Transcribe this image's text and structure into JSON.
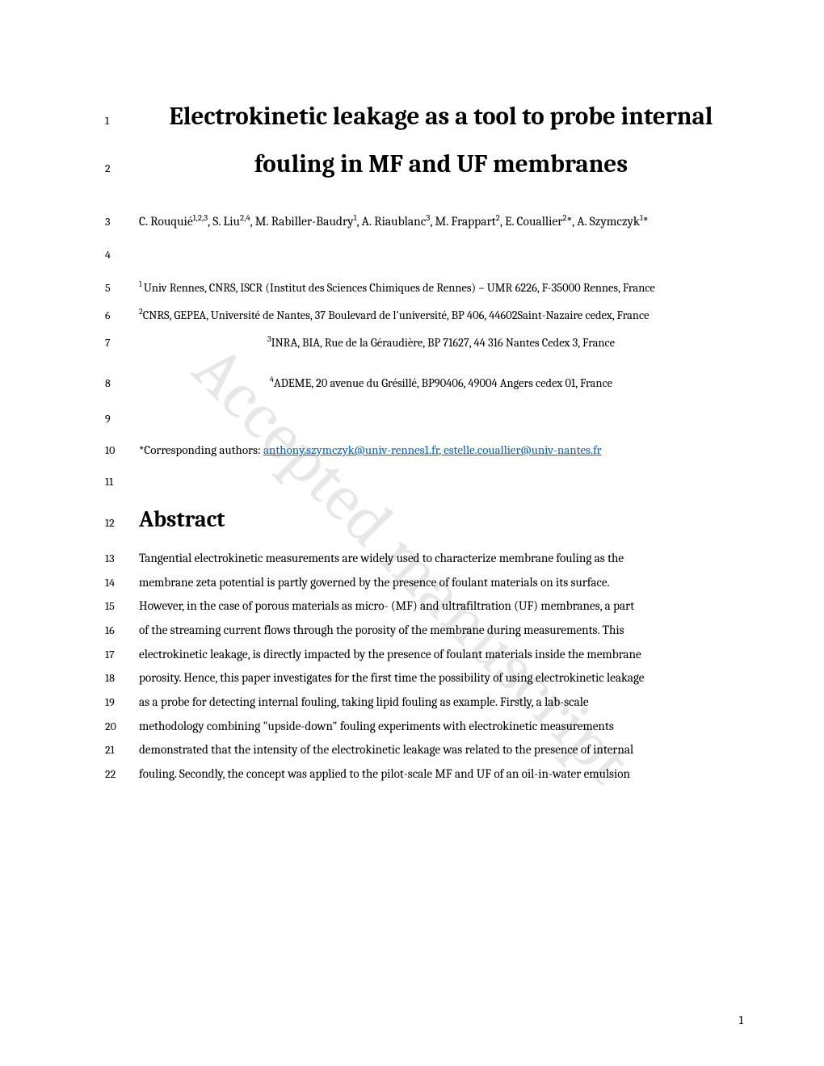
{
  "watermark": "Accepted manuscript",
  "title": {
    "line1": "Electrokinetic leakage as a tool to probe internal",
    "line2": "fouling in MF and UF membranes"
  },
  "lineNumbers": {
    "t1": "1",
    "t2": "2",
    "auth": "3",
    "blank1": "4",
    "af1": "5",
    "af2": "6",
    "af3": "7",
    "af4": "8",
    "blank2": "9",
    "corr": "10",
    "blank3": "11",
    "abs": "12"
  },
  "authors_html": "C. Rouquié<sup>1,2,3</sup>, S. Liu<sup>2,4</sup>, M. Rabiller-Baudry<sup>1</sup>, A. Riaublanc<sup>3</sup>, M. Frappart<sup>2</sup>, E. Couallier<sup>2</sup>*, A. Szymczyk<sup>1</sup>*",
  "affiliations": {
    "a1": "1 Univ Rennes, CNRS, ISCR (Institut des Sciences Chimiques de Rennes) – UMR 6226, F-35000 Rennes, France",
    "a2": "2CNRS, GEPEA, Université de Nantes, 37 Boulevard de l'université, BP 406, 44602Saint-Nazaire cedex, France",
    "a3": "3INRA, BIA, Rue de la Géraudière, BP 71627, 44 316 Nantes Cedex 3, France",
    "a4": "4ADEME, 20 avenue du Grésillé, BP90406, 49004 Angers cedex 01, France"
  },
  "corresponding": {
    "label": "*Corresponding authors: ",
    "email1": "anthony.szymczyk@univ-rennes1.fr",
    "sep": ", ",
    "email2": "estelle.couallier@univ-nantes.fr"
  },
  "abstract_heading": "Abstract",
  "abstract_lines": [
    {
      "n": "13",
      "t": "Tangential electrokinetic measurements are widely used to characterize membrane fouling as the"
    },
    {
      "n": "14",
      "t": "membrane zeta potential is partly governed by the presence of foulant materials on its surface."
    },
    {
      "n": "15",
      "t": "However, in the case of porous materials as micro- (MF) and ultrafiltration (UF) membranes, a part"
    },
    {
      "n": "16",
      "t": "of the streaming current flows through the porosity of the membrane during measurements. This"
    },
    {
      "n": "17",
      "t": "electrokinetic leakage, is directly impacted by the presence of foulant materials inside the membrane"
    },
    {
      "n": "18",
      "t": "porosity. Hence, this paper investigates for the first time the possibility of using electrokinetic leakage"
    },
    {
      "n": "19",
      "t": "as a probe for detecting internal fouling, taking lipid fouling as example. Firstly, a lab-scale"
    },
    {
      "n": "20",
      "t": "methodology combining \"upside-down\" fouling experiments with electrokinetic measurements"
    },
    {
      "n": "21",
      "t": "demonstrated that the intensity of the electrokinetic leakage was related to the presence of internal"
    },
    {
      "n": "22",
      "t": "fouling. Secondly, the concept was applied to the pilot-scale MF and UF of an oil-in-water emulsion"
    }
  ],
  "page_number": "1"
}
